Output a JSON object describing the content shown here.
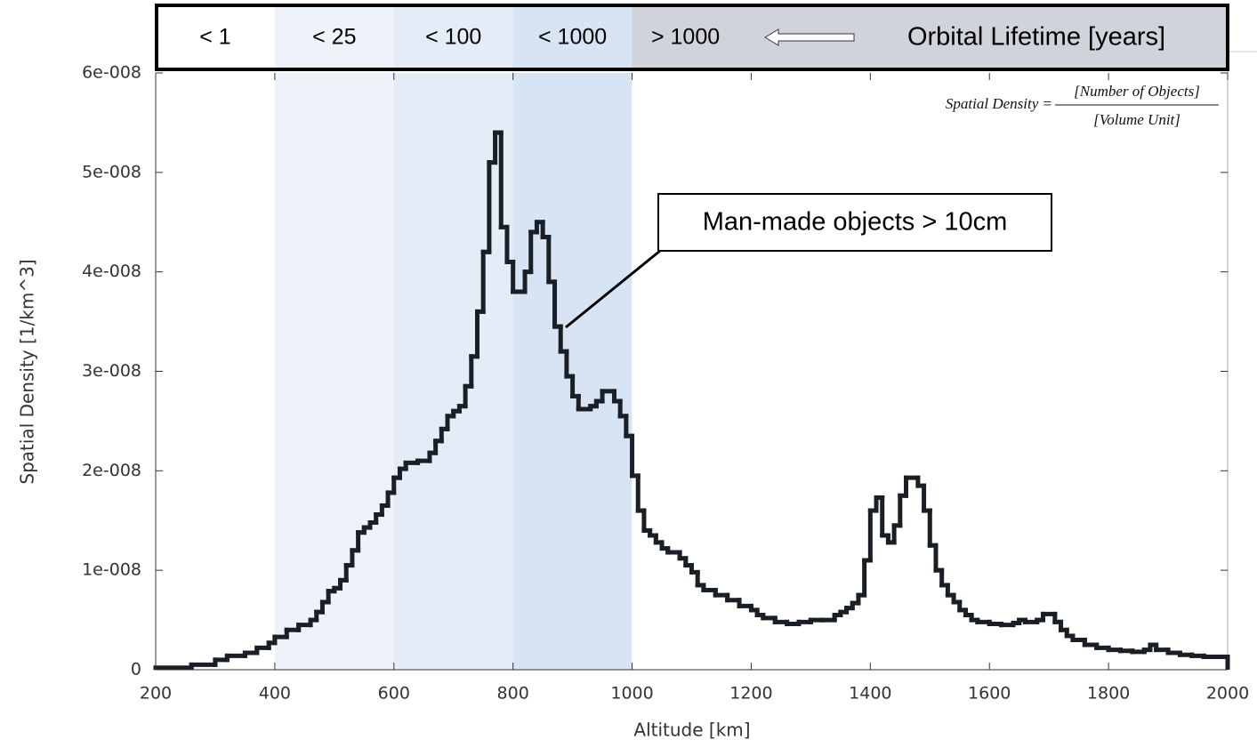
{
  "chart_data": {
    "type": "step",
    "x_label": "Altitude [km]",
    "y_label": "Spatial Density [1/km^3]",
    "header_title": "Orbital Lifetime [years]",
    "lifetime_bands": [
      {
        "label": "< 1",
        "from": 200,
        "to": 400,
        "header_color": "#ffffff",
        "plot_color": "#ffffff"
      },
      {
        "label": "< 25",
        "from": 400,
        "to": 600,
        "header_color": "#eef3fa",
        "plot_color": "#eef3fa"
      },
      {
        "label": "< 100",
        "from": 600,
        "to": 800,
        "header_color": "#e3ecf7",
        "plot_color": "#e3ecf7"
      },
      {
        "label": "< 1000",
        "from": 800,
        "to": 1000,
        "header_color": "#d7e4f3",
        "plot_color": "#d7e4f3"
      },
      {
        "label": "> 1000",
        "from": 1000,
        "to": 2000,
        "header_color": "#d0d3da",
        "plot_color": "#ffffff"
      }
    ],
    "formula": {
      "lhs": "Spatial Density =",
      "numerator": "[Number of Objects]",
      "denominator": "[Volume Unit]"
    },
    "annotation": {
      "text": "Man-made objects > 10cm"
    },
    "color": "#1a1f26",
    "x": [
      200,
      260,
      300,
      320,
      350,
      370,
      390,
      400,
      420,
      440,
      460,
      470,
      480,
      490,
      500,
      510,
      520,
      530,
      540,
      550,
      560,
      570,
      580,
      590,
      600,
      610,
      620,
      640,
      660,
      670,
      680,
      690,
      700,
      710,
      720,
      730,
      740,
      750,
      760,
      770,
      780,
      790,
      800,
      820,
      830,
      840,
      850,
      860,
      870,
      880,
      890,
      900,
      910,
      930,
      940,
      950,
      970,
      980,
      990,
      1000,
      1010,
      1020,
      1030,
      1040,
      1050,
      1060,
      1080,
      1090,
      1100,
      1110,
      1120,
      1140,
      1160,
      1180,
      1200,
      1210,
      1220,
      1240,
      1260,
      1280,
      1300,
      1320,
      1340,
      1350,
      1360,
      1370,
      1380,
      1390,
      1400,
      1410,
      1420,
      1430,
      1440,
      1450,
      1460,
      1480,
      1490,
      1500,
      1510,
      1520,
      1530,
      1540,
      1550,
      1560,
      1570,
      1580,
      1600,
      1620,
      1640,
      1650,
      1660,
      1680,
      1690,
      1710,
      1720,
      1730,
      1740,
      1760,
      1780,
      1800,
      1820,
      1840,
      1860,
      1870,
      1880,
      1900,
      1920,
      1940,
      1960
    ],
    "values": [
      2e-10,
      5e-10,
      1e-09,
      1.4e-09,
      1.7e-09,
      2.2e-09,
      2.7e-09,
      3.3e-09,
      4e-09,
      4.5e-09,
      5e-09,
      5.8e-09,
      6.8e-09,
      7.9e-09,
      8.2e-09,
      9e-09,
      1.05e-08,
      1.2e-08,
      1.38e-08,
      1.43e-08,
      1.48e-08,
      1.56e-08,
      1.65e-08,
      1.78e-08,
      1.93e-08,
      2.02e-08,
      2.08e-08,
      2.1e-08,
      2.18e-08,
      2.3e-08,
      2.42e-08,
      2.55e-08,
      2.6e-08,
      2.65e-08,
      2.85e-08,
      3.15e-08,
      3.6e-08,
      4.2e-08,
      5.1e-08,
      5.4e-08,
      4.45e-08,
      4.1e-08,
      3.8e-08,
      4e-08,
      4.4e-08,
      4.5e-08,
      4.35e-08,
      3.9e-08,
      3.45e-08,
      3.2e-08,
      2.95e-08,
      2.75e-08,
      2.62e-08,
      2.65e-08,
      2.7e-08,
      2.8e-08,
      2.7e-08,
      2.55e-08,
      2.35e-08,
      1.95e-08,
      1.6e-08,
      1.4e-08,
      1.35e-08,
      1.28e-08,
      1.22e-08,
      1.18e-08,
      1.12e-08,
      1.05e-08,
      9.8e-09,
      8.5e-09,
      8e-09,
      7.5e-09,
      7e-09,
      6.4e-09,
      6e-09,
      5.5e-09,
      5.2e-09,
      4.8e-09,
      4.6e-09,
      4.8e-09,
      5e-09,
      5e-09,
      5.5e-09,
      5.8e-09,
      6.2e-09,
      6.7e-09,
      7.5e-09,
      1.1e-08,
      1.6e-08,
      1.73e-08,
      1.35e-08,
      1.28e-08,
      1.45e-08,
      1.75e-08,
      1.93e-08,
      1.85e-08,
      1.6e-08,
      1.25e-08,
      1e-08,
      8.5e-09,
      7.5e-09,
      6.8e-09,
      6e-09,
      5.5e-09,
      5e-09,
      4.8e-09,
      4.6e-09,
      4.5e-09,
      4.7e-09,
      5e-09,
      4.8e-09,
      5e-09,
      5.6e-09,
      4.8e-09,
      4e-09,
      3.4e-09,
      3e-09,
      2.5e-09,
      2.2e-09,
      2e-09,
      1.9e-09,
      1.8e-09,
      2e-09,
      2.5e-09,
      2e-09,
      1.7e-09,
      1.5e-09,
      1.4e-09,
      1.3e-09
    ],
    "xlim": [
      200,
      2000
    ],
    "xticks": [
      200,
      400,
      600,
      800,
      1000,
      1200,
      1400,
      1600,
      1800,
      2000
    ],
    "ylim": [
      0,
      6e-08
    ],
    "yticks": [
      {
        "value": 0,
        "label": "0"
      },
      {
        "value": 1e-08,
        "label": "1e-008"
      },
      {
        "value": 2e-08,
        "label": "2e-008"
      },
      {
        "value": 3e-08,
        "label": "3e-008"
      },
      {
        "value": 4e-08,
        "label": "4e-008"
      },
      {
        "value": 5e-08,
        "label": "5e-008"
      },
      {
        "value": 6e-08,
        "label": "6e-008"
      }
    ]
  }
}
